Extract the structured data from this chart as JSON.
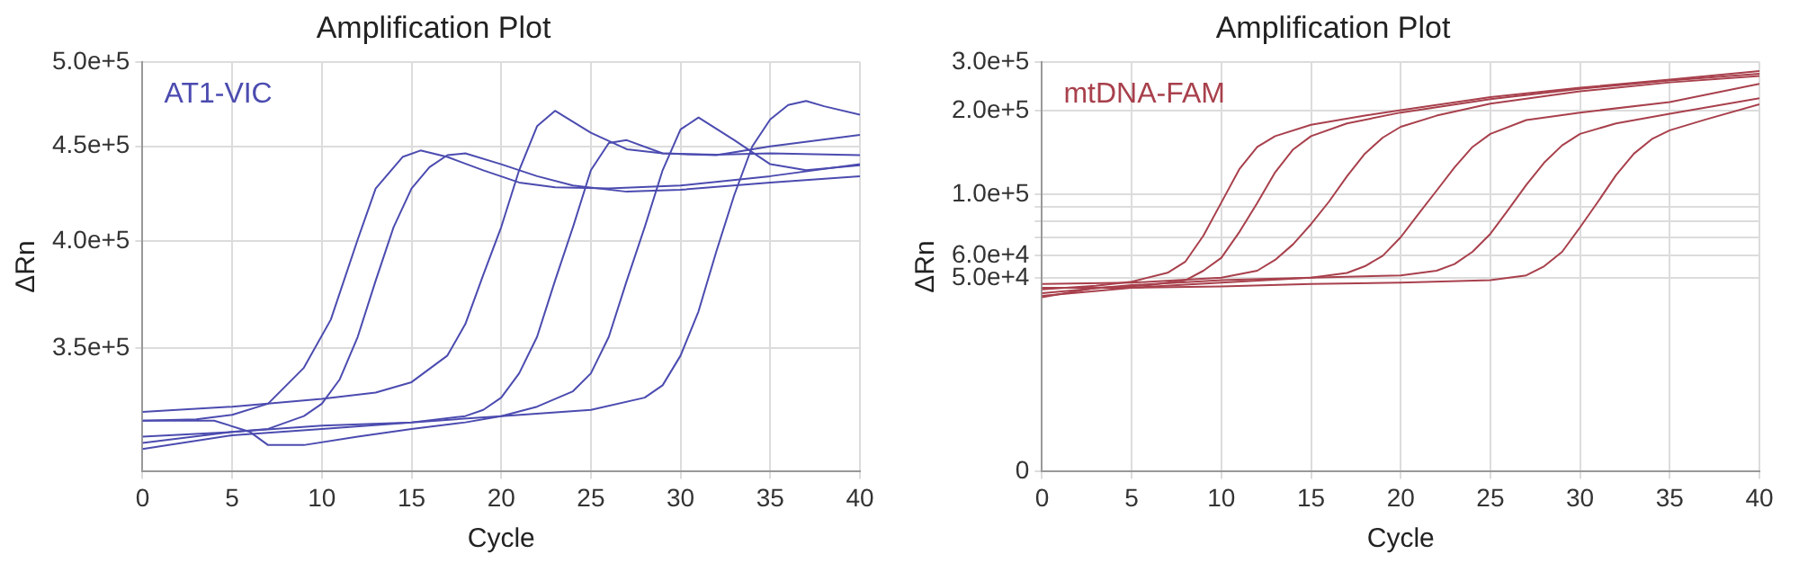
{
  "chart_data": [
    {
      "type": "line",
      "title": "Amplification Plot",
      "xlabel": "Cycle",
      "ylabel": "ΔRn",
      "annotations": [
        "AT1-VIC"
      ],
      "log": "y",
      "grid": true,
      "marker": "none",
      "line_style": "solid",
      "xlim": [
        0,
        40
      ],
      "xticks": [
        0,
        5,
        10,
        15,
        20,
        25,
        30,
        35,
        40
      ],
      "ylim": [
        300000,
        500000
      ],
      "yticks": [
        {
          "value": 350000,
          "label": "3.5e+5"
        },
        {
          "value": 400000,
          "label": "4.0e+5"
        },
        {
          "value": 450000,
          "label": "4.5e+5"
        },
        {
          "value": 500000,
          "label": "5.0e+5"
        }
      ],
      "series": [
        {
          "color": "#4b4bb0",
          "x": [
            0,
            3,
            5,
            7,
            9,
            10.5,
            12,
            13,
            14.5,
            15.5,
            17,
            19,
            21,
            23,
            26,
            30,
            35,
            40
          ],
          "values": [
            319700,
            320200,
            322000,
            326500,
            341500,
            362600,
            400700,
            427000,
            444100,
            447700,
            444100,
            436800,
            430200,
            427600,
            427000,
            428600,
            433600,
            440100
          ]
        },
        {
          "color": "#4b4bb0",
          "x": [
            0,
            5,
            7,
            9,
            10,
            11,
            12,
            13,
            14,
            15,
            16,
            17,
            18,
            20,
            22,
            24,
            27,
            30,
            35,
            40
          ],
          "values": [
            310900,
            315200,
            316400,
            321500,
            326500,
            336600,
            354900,
            380600,
            406900,
            427000,
            438500,
            445100,
            446100,
            440100,
            433600,
            428600,
            425300,
            426300,
            430200,
            433600
          ]
        },
        {
          "color": "#4b4bb0",
          "x": [
            0,
            5,
            10,
            13,
            15,
            17,
            18,
            19,
            20,
            21,
            22,
            23,
            25,
            27,
            29,
            32,
            35,
            40
          ],
          "values": [
            323200,
            325300,
            328500,
            331100,
            335400,
            346700,
            360600,
            383400,
            406900,
            436800,
            461500,
            470400,
            457700,
            448400,
            446100,
            445400,
            446100,
            445100
          ]
        },
        {
          "color": "#4b4bb0",
          "x": [
            0,
            5,
            10,
            15,
            18,
            19,
            20,
            21,
            22,
            23,
            24,
            25,
            26,
            27,
            29,
            32,
            35,
            40
          ],
          "values": [
            308600,
            313900,
            316400,
            319000,
            321500,
            324000,
            329000,
            339100,
            354900,
            380600,
            406900,
            436800,
            451900,
            453500,
            446100,
            445100,
            450000,
            456500
          ]
        },
        {
          "color": "#4b4bb0",
          "x": [
            0,
            4,
            6,
            7,
            9,
            12,
            15,
            18,
            20,
            22,
            24,
            25,
            26,
            27,
            28,
            29,
            30,
            31,
            33,
            35,
            37,
            40
          ],
          "values": [
            319700,
            319700,
            315200,
            310100,
            310100,
            313400,
            316400,
            319000,
            321500,
            325300,
            331600,
            339100,
            354900,
            380600,
            406900,
            436800,
            459600,
            466500,
            453500,
            440100,
            436800,
            439500
          ]
        },
        {
          "color": "#4b4bb0",
          "x": [
            0,
            5,
            10,
            15,
            20,
            25,
            28,
            29,
            30,
            31,
            32,
            33,
            34,
            35,
            36,
            37,
            38,
            40
          ],
          "values": [
            313400,
            315200,
            317700,
            319000,
            321500,
            324000,
            329000,
            334100,
            346700,
            366300,
            394900,
            423700,
            450000,
            465400,
            473800,
            476200,
            473100,
            468100
          ]
        }
      ]
    },
    {
      "type": "line",
      "title": "Amplification Plot",
      "xlabel": "Cycle",
      "ylabel": "ΔRn",
      "annotations": [
        "mtDNA-FAM"
      ],
      "log": "y",
      "grid": true,
      "marker": "none",
      "line_style": "solid",
      "xlim": [
        0,
        40
      ],
      "xticks": [
        0,
        5,
        10,
        15,
        20,
        25,
        30,
        35,
        40
      ],
      "ylim": [
        0,
        300000
      ],
      "yticks": [
        0,
        {
          "value": 50000,
          "label": "5.0e+4"
        },
        {
          "value": 60000,
          "label": "6.0e+4"
        },
        {
          "value": 70000,
          "label": null
        },
        {
          "value": 80000,
          "label": null
        },
        {
          "value": 90000,
          "label": null
        },
        {
          "value": 100000,
          "label": "1.0e+5"
        },
        {
          "value": 200000,
          "label": "2.0e+5"
        },
        {
          "value": 300000,
          "label": "3.0e+5"
        }
      ],
      "series": [
        {
          "color": "#a8404c",
          "x": [
            0,
            3,
            5,
            7,
            8,
            9,
            10,
            11,
            12,
            13,
            15,
            18,
            20,
            25,
            30,
            35,
            40
          ],
          "values": [
            45400,
            46800,
            48400,
            52100,
            57200,
            70900,
            93400,
            123000,
            148000,
            162000,
            178000,
            192000,
            201000,
            224000,
            242000,
            259000,
            278000
          ]
        },
        {
          "color": "#a8404c",
          "x": [
            0,
            3,
            6,
            8,
            9,
            10,
            11,
            12,
            13,
            14,
            15,
            17,
            20,
            25,
            30,
            35,
            40
          ],
          "values": [
            42500,
            46000,
            47000,
            49000,
            53000,
            59000,
            73000,
            93000,
            120000,
            145000,
            162000,
            180000,
            197000,
            220000,
            240000,
            257000,
            272000
          ]
        },
        {
          "color": "#a8404c",
          "x": [
            0,
            5,
            10,
            12,
            13,
            14,
            15,
            16,
            17,
            18,
            19,
            20,
            22,
            25,
            30,
            35,
            40
          ],
          "values": [
            47500,
            48000,
            50000,
            53000,
            58000,
            66000,
            78000,
            94000,
            116000,
            140000,
            160000,
            175000,
            192000,
            212000,
            235000,
            253000,
            267000
          ]
        },
        {
          "color": "#a8404c",
          "x": [
            0,
            5,
            10,
            15,
            17,
            18,
            19,
            20,
            21,
            22,
            23,
            24,
            25,
            27,
            30,
            35,
            40
          ],
          "values": [
            43000,
            46000,
            48000,
            50000,
            52000,
            55000,
            60000,
            70000,
            85000,
            103000,
            125000,
            148000,
            165000,
            185000,
            197000,
            215000,
            250000
          ]
        },
        {
          "color": "#a8404c",
          "x": [
            0,
            5,
            10,
            15,
            20,
            22,
            23,
            24,
            25,
            26,
            27,
            28,
            29,
            30,
            32,
            35,
            40
          ],
          "values": [
            44000,
            47000,
            49000,
            50000,
            51000,
            53000,
            56000,
            62000,
            72000,
            88000,
            108000,
            130000,
            150000,
            165000,
            180000,
            195000,
            222000
          ]
        },
        {
          "color": "#a8404c",
          "x": [
            0,
            5,
            10,
            15,
            20,
            25,
            27,
            28,
            29,
            30,
            31,
            32,
            33,
            34,
            35,
            37,
            40
          ],
          "values": [
            46000,
            46000,
            46500,
            47500,
            48000,
            49000,
            51000,
            55000,
            62000,
            76000,
            94000,
            117000,
            140000,
            158000,
            170000,
            186000,
            211000
          ]
        }
      ]
    }
  ]
}
